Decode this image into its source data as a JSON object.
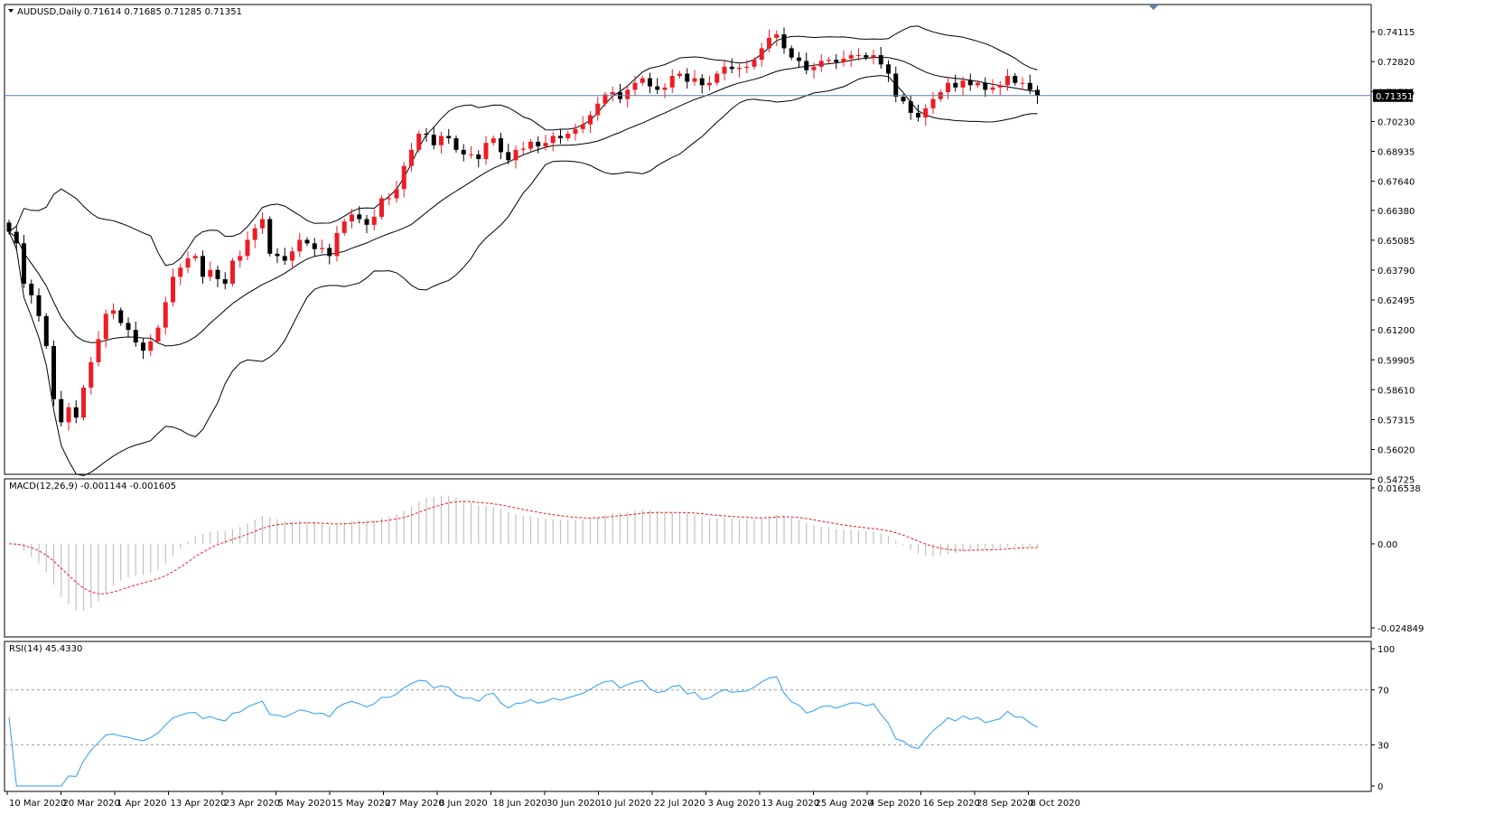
{
  "window_title": "AUDUSD,Daily",
  "ohlc_header": "0.71614 0.71685 0.71285 0.71351",
  "current_price_label": "0.71351",
  "colors": {
    "bull": "#ee1c24",
    "bear": "#000000",
    "bands": "#000000",
    "macd_hist": "#c0c0c0",
    "macd_signal": "#ee1c24",
    "rsi_line": "#2a9df4",
    "rsi_levels": "#a0a0a0",
    "price_line": "#5a7fa8",
    "grid_frame": "#000000"
  },
  "chart_data": [
    {
      "type": "candlestick",
      "title": "AUDUSD,Daily",
      "ohlc_label": "0.71614 0.71685 0.71285 0.71351",
      "ylim": [
        0.54,
        0.75
      ],
      "y_ticks": [
        "0.74115",
        "0.72820",
        "0.71525",
        "0.70230",
        "0.68935",
        "0.67640",
        "0.66380",
        "0.65085",
        "0.63790",
        "0.62495",
        "0.61200",
        "0.59905",
        "0.58610",
        "0.57315",
        "0.56020",
        "0.54725"
      ],
      "x_labels": [
        "10 Mar 2020",
        "20 Mar 2020",
        "1 Apr 2020",
        "13 Apr 2020",
        "23 Apr 2020",
        "5 May 2020",
        "15 May 2020",
        "27 May 2020",
        "8 Jun 2020",
        "18 Jun 2020",
        "30 Jun 2020",
        "10 Jul 2020",
        "22 Jul 2020",
        "3 Aug 2020",
        "13 Aug 2020",
        "25 Aug 2020",
        "4 Sep 2020",
        "16 Sep 2020",
        "28 Sep 2020",
        "8 Oct 2020"
      ],
      "current_price": 0.71351,
      "closes": [
        0.6545,
        0.6495,
        0.632,
        0.627,
        0.618,
        0.605,
        0.582,
        0.572,
        0.5785,
        0.574,
        0.587,
        0.598,
        0.608,
        0.619,
        0.6205,
        0.615,
        0.612,
        0.6065,
        0.603,
        0.607,
        0.613,
        0.624,
        0.635,
        0.639,
        0.643,
        0.644,
        0.635,
        0.638,
        0.634,
        0.632,
        0.642,
        0.644,
        0.651,
        0.656,
        0.66,
        0.645,
        0.644,
        0.642,
        0.646,
        0.651,
        0.6495,
        0.647,
        0.6475,
        0.644,
        0.654,
        0.659,
        0.662,
        0.66,
        0.6575,
        0.661,
        0.669,
        0.669,
        0.673,
        0.683,
        0.69,
        0.697,
        0.6965,
        0.692,
        0.696,
        0.695,
        0.69,
        0.688,
        0.688,
        0.686,
        0.693,
        0.695,
        0.689,
        0.6855,
        0.69,
        0.6905,
        0.6935,
        0.6915,
        0.693,
        0.696,
        0.695,
        0.697,
        0.699,
        0.701,
        0.705,
        0.71,
        0.714,
        0.715,
        0.712,
        0.716,
        0.719,
        0.721,
        0.7175,
        0.716,
        0.717,
        0.722,
        0.723,
        0.7195,
        0.721,
        0.718,
        0.719,
        0.723,
        0.726,
        0.725,
        0.7255,
        0.726,
        0.729,
        0.734,
        0.7385,
        0.74,
        0.734,
        0.73,
        0.7285,
        0.7245,
        0.726,
        0.7285,
        0.729,
        0.728,
        0.7295,
        0.731,
        0.731,
        0.73,
        0.731,
        0.727,
        0.723,
        0.713,
        0.711,
        0.706,
        0.704,
        0.708,
        0.712,
        0.715,
        0.719,
        0.717,
        0.72,
        0.718,
        0.719,
        0.716,
        0.717,
        0.718,
        0.722,
        0.719,
        0.719,
        0.716,
        0.7135
      ]
    },
    {
      "type": "bar",
      "title": "MACD(12,26,9) -0.001144 -0.001605",
      "ylim": [
        -0.026,
        0.0175
      ],
      "y_ticks": [
        "0.016538",
        "0.00",
        "-0.024849"
      ]
    },
    {
      "type": "line",
      "title": "RSI(14) 45.4330",
      "ylim": [
        0,
        100
      ],
      "y_ticks": [
        "100",
        "70",
        "30",
        "0"
      ],
      "levels": [
        70,
        30
      ]
    }
  ]
}
